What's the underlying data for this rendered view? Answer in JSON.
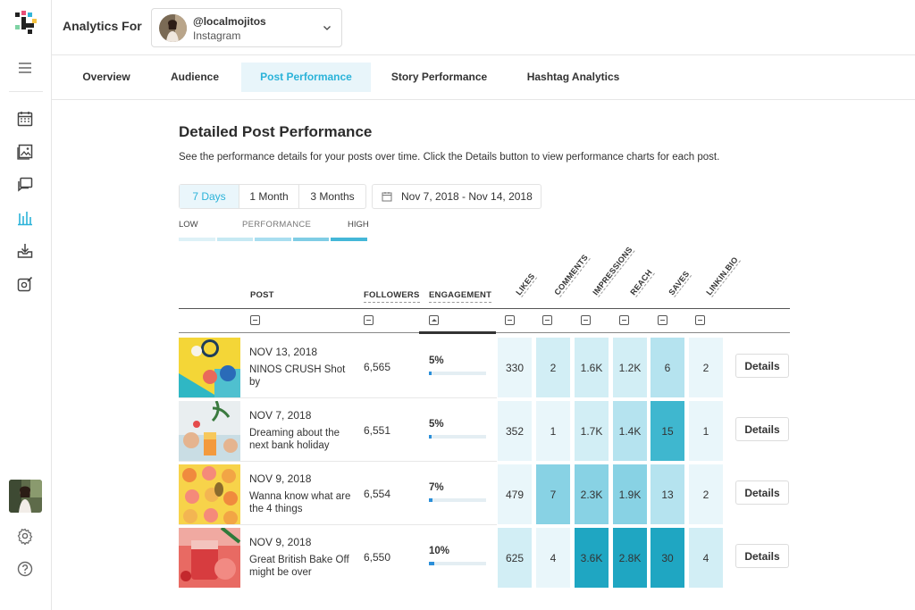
{
  "header": {
    "analytics_for": "Analytics For",
    "account": {
      "handle": "@localmojitos",
      "network": "Instagram"
    }
  },
  "tabs": [
    {
      "label": "Overview"
    },
    {
      "label": "Audience"
    },
    {
      "label": "Post Performance",
      "active": true
    },
    {
      "label": "Story Performance"
    },
    {
      "label": "Hashtag Analytics"
    }
  ],
  "main": {
    "title": "Detailed Post Performance",
    "subtitle": "See the performance details for your posts over time. Click the Details button to view performance charts for each post.",
    "ranges": [
      "7 Days",
      "1 Month",
      "3 Months"
    ],
    "active_range": "7 Days",
    "date_range": "Nov 7, 2018 - Nov 14, 2018",
    "legend": {
      "low": "LOW",
      "mid": "PERFORMANCE",
      "high": "HIGH"
    }
  },
  "table": {
    "columns": {
      "post": "POST",
      "followers": "FOLLOWERS",
      "engagement": "ENGAGEMENT",
      "likes": "LIKES",
      "comments": "COMMENTS",
      "impressions": "IMPRESSIONS",
      "reach": "REACH",
      "saves": "SAVES",
      "linkinbio": "LINKIN.BIO"
    },
    "details_label": "Details",
    "rows": [
      {
        "date": "NOV 13, 2018",
        "caption": "NINOS CRUSH Shot by",
        "followers": "6,565",
        "engagement": "5%",
        "engagement_pct": 5,
        "likes": "330",
        "comments": "2",
        "impressions": "1.6K",
        "reach": "1.2K",
        "saves": "6",
        "linkinbio": "2"
      },
      {
        "date": "NOV 7, 2018",
        "caption": "Dreaming about the next bank holiday",
        "followers": "6,551",
        "engagement": "5%",
        "engagement_pct": 5,
        "likes": "352",
        "comments": "1",
        "impressions": "1.7K",
        "reach": "1.4K",
        "saves": "15",
        "linkinbio": "1"
      },
      {
        "date": "NOV 9, 2018",
        "caption": "Wanna know what are the 4 things",
        "followers": "6,554",
        "engagement": "7%",
        "engagement_pct": 7,
        "likes": "479",
        "comments": "7",
        "impressions": "2.3K",
        "reach": "1.9K",
        "saves": "13",
        "linkinbio": "2"
      },
      {
        "date": "NOV 9, 2018",
        "caption": "Great British Bake Off might be over",
        "followers": "6,550",
        "engagement": "10%",
        "engagement_pct": 10,
        "likes": "625",
        "comments": "4",
        "impressions": "3.6K",
        "reach": "2.8K",
        "saves": "30",
        "linkinbio": "4"
      }
    ]
  },
  "colors": {
    "accent": "#2bb3d9",
    "heat": [
      "#e9f6fa",
      "#d2eef5",
      "#b5e3ef",
      "#88d2e4",
      "#3fb7cf",
      "#1fa6c2"
    ]
  },
  "icons": [
    "calendar-icon",
    "image-icon",
    "chat-icon",
    "analytics-icon",
    "download-icon",
    "edit-icon",
    "settings-icon",
    "help-icon",
    "menu-icon",
    "chevron-down-icon"
  ]
}
